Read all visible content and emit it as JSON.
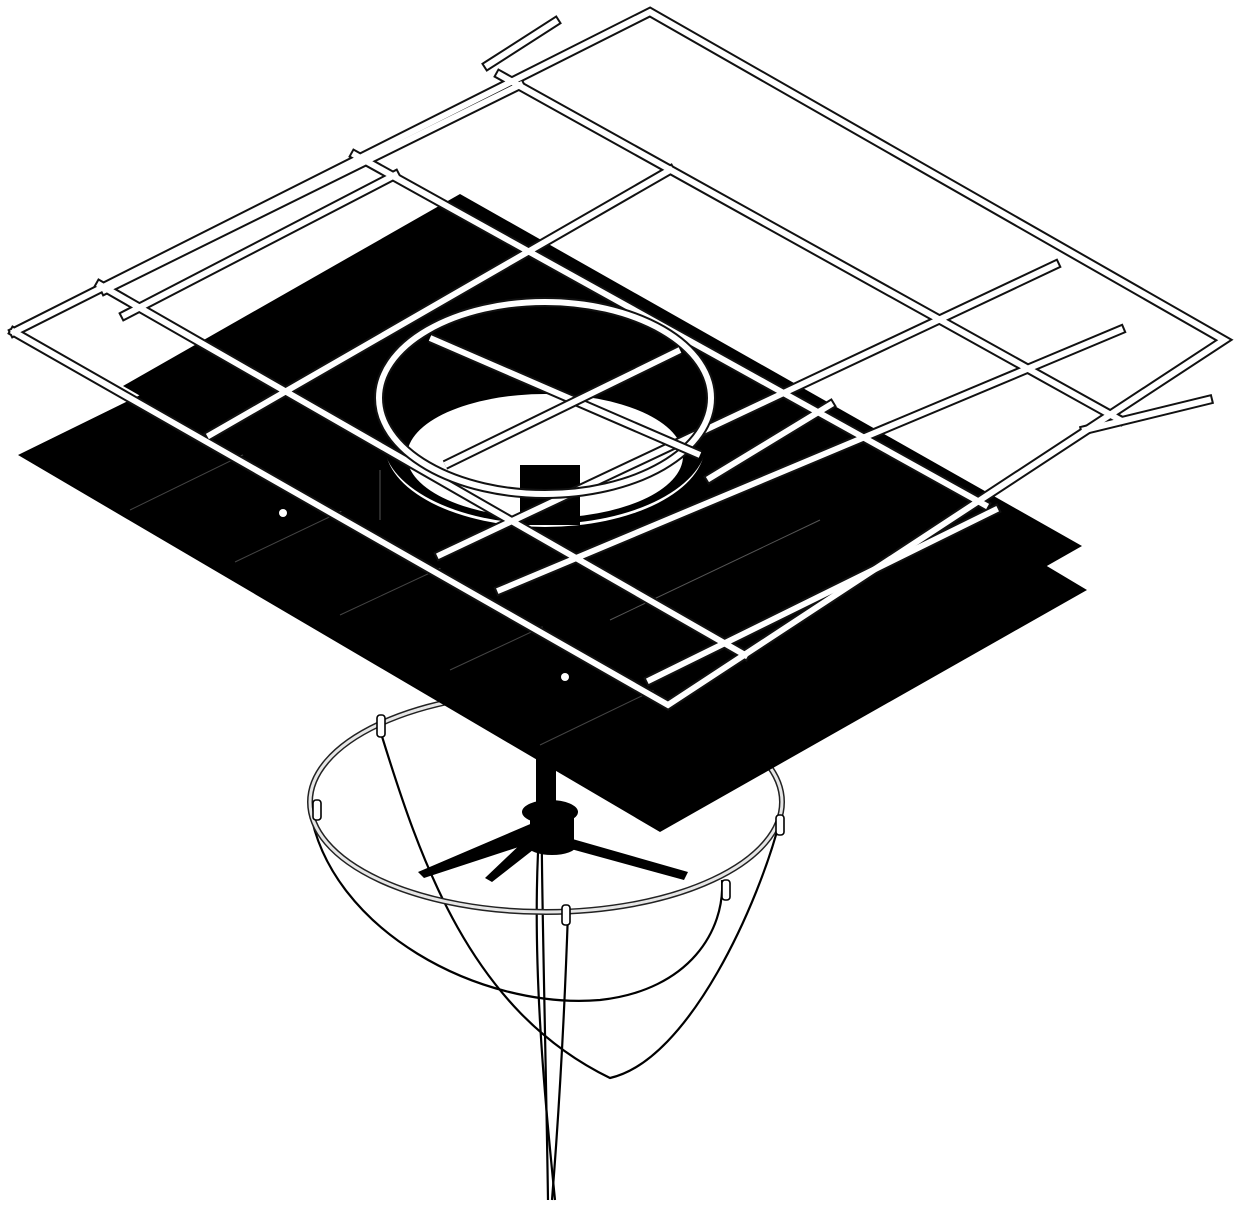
{
  "diagram": {
    "components": [
      {
        "id": "frame",
        "icon": "tubular-frame-grid"
      },
      {
        "id": "upper-panel",
        "icon": "black-panel"
      },
      {
        "id": "lower-panel",
        "icon": "black-panel"
      },
      {
        "id": "opening",
        "icon": "circular-ring"
      },
      {
        "id": "stand",
        "icon": "tripod-mount"
      },
      {
        "id": "hoop",
        "icon": "suspension-hoop"
      },
      {
        "id": "cables",
        "icon": "hanging-cables"
      }
    ],
    "colors": {
      "panel": "#000000",
      "frame_fill": "#ffffff",
      "frame_outline": "#111111",
      "background": "#ffffff"
    }
  }
}
